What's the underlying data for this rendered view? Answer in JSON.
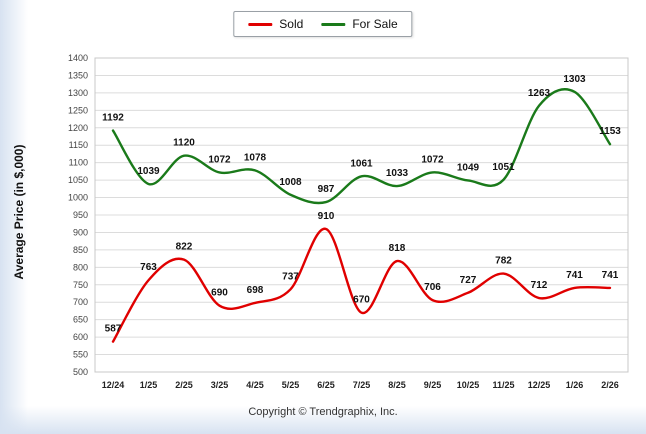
{
  "legend": {
    "sold_label": "Sold",
    "for_sale_label": "For Sale"
  },
  "y_axis": {
    "title": "Average Price (in $,000)"
  },
  "footer": {
    "copyright": "Copyright © Trendgraphix, Inc."
  },
  "colors": {
    "sold": "#e00000",
    "for_sale": "#1a7a1a",
    "grid": "#dcdcdc",
    "plot_border": "#c8c8c8"
  },
  "chart_data": {
    "type": "line",
    "categories": [
      "12/24",
      "1/25",
      "2/25",
      "3/25",
      "4/25",
      "5/25",
      "6/25",
      "7/25",
      "8/25",
      "9/25",
      "10/25",
      "11/25",
      "12/25",
      "1/26",
      "2/26"
    ],
    "series": [
      {
        "name": "Sold",
        "color": "#e00000",
        "values": [
          587,
          763,
          822,
          690,
          698,
          737,
          910,
          670,
          818,
          706,
          727,
          782,
          712,
          741,
          741
        ]
      },
      {
        "name": "For Sale",
        "color": "#1a7a1a",
        "values": [
          1192,
          1039,
          1120,
          1072,
          1078,
          1008,
          987,
          1061,
          1033,
          1072,
          1049,
          1051,
          1263,
          1303,
          1153
        ]
      }
    ],
    "title": "",
    "xlabel": "",
    "ylabel": "Average Price (in $,000)",
    "ylim": [
      500,
      1400
    ],
    "ytick_step": 50,
    "grid": true,
    "legend_position": "top-center"
  }
}
